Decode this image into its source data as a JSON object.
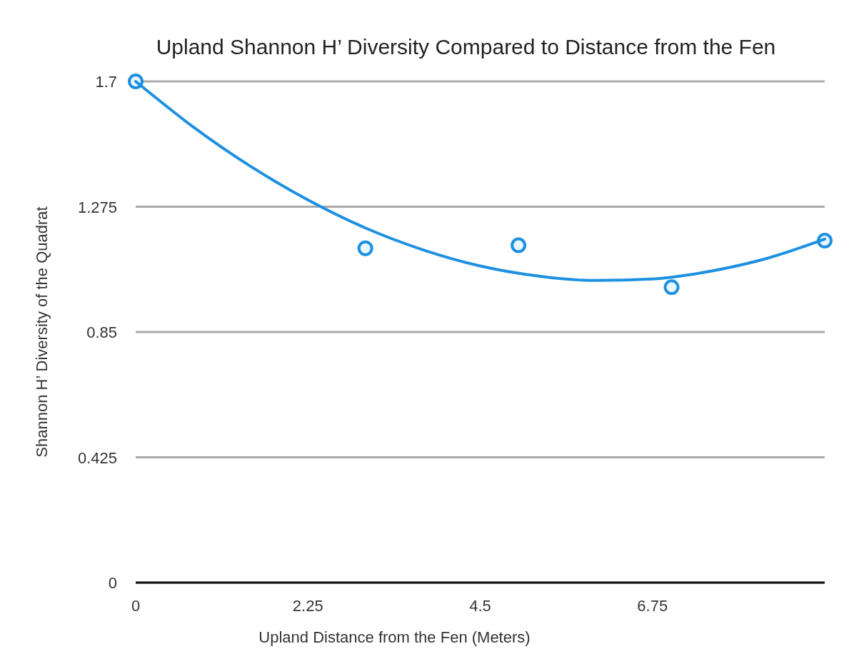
{
  "chart_data": {
    "type": "scatter",
    "title": "Upland Shannon  H’ Diversity Compared to Distance from the Fen",
    "xlabel": "Upland Distance from the Fen (Meters)",
    "ylabel": "Shannon H’ Diversity of the Quadrat",
    "x": [
      0,
      3,
      5,
      7,
      9
    ],
    "xlim": [
      0,
      9
    ],
    "xticks": [
      0,
      2.25,
      4.5,
      6.75
    ],
    "ylim": [
      0,
      1.7
    ],
    "yticks": [
      0,
      0.425,
      0.85,
      1.275,
      1.7
    ],
    "grid": "y",
    "marker": "circle",
    "series": [
      {
        "color": "#1e90e0",
        "values": [
          1.7,
          1.134,
          1.144,
          1.002,
          1.16
        ]
      },
      {
        "type": "line",
        "color": "#1e90e0",
        "line_style": "solid",
        "marker": "none",
        "x": [
          0,
          0.75,
          1.5,
          2.25,
          3,
          3.75,
          4.5,
          5.25,
          6,
          6.75,
          7.5,
          8.25,
          9
        ],
        "values": [
          1.7,
          1.546,
          1.412,
          1.298,
          1.203,
          1.129,
          1.074,
          1.04,
          1.025,
          1.03,
          1.056,
          1.1,
          1.165
        ]
      }
    ]
  }
}
